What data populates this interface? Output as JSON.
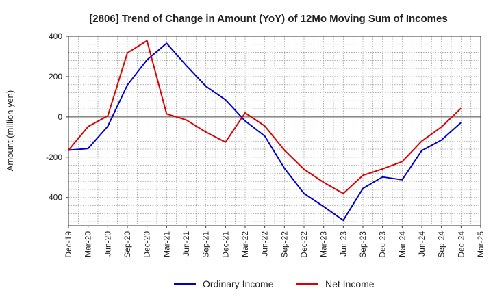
{
  "chart_data": {
    "type": "line",
    "title": "[2806]  Trend of Change in Amount (YoY) of 12Mo Moving Sum of Incomes",
    "xlabel": "",
    "ylabel": "Amount (million yen)",
    "ylim": [
      -540,
      400
    ],
    "yticks": [
      400,
      200,
      0,
      -200,
      -400
    ],
    "grid": true,
    "legend_position": "bottom-center",
    "categories": [
      "Dec-19",
      "Mar-20",
      "Jun-20",
      "Sep-20",
      "Dec-20",
      "Mar-21",
      "Jun-21",
      "Sep-21",
      "Dec-21",
      "Mar-22",
      "Jun-22",
      "Sep-22",
      "Dec-22",
      "Mar-23",
      "Jun-23",
      "Sep-23",
      "Dec-23",
      "Mar-24",
      "Jun-24",
      "Sep-24",
      "Dec-24",
      "Mar-25"
    ],
    "tick_labels": [
      "Dec-19",
      "Mar-20",
      "Jun-20",
      "Sep-20",
      "Dec-20",
      "Mar-21",
      "Jun-21",
      "Sep-21",
      "Dec-21",
      "Mar-22",
      "Jun-22",
      "Sep-22",
      "Dec-22",
      "Mar-23",
      "Jun-23",
      "Sep-23",
      "Dec-23",
      "Mar-24",
      "Jun-24",
      "Sep-24",
      "Dec-24",
      "Mar-25"
    ],
    "series": [
      {
        "name": "Ordinary Income",
        "color": "#0000cc",
        "values": [
          -165,
          -157,
          -47,
          158,
          283,
          365,
          255,
          152,
          85,
          -20,
          -95,
          -255,
          -380,
          -445,
          -513,
          -355,
          -298,
          -312,
          -167,
          -115,
          -28,
          null
        ]
      },
      {
        "name": "Net Income",
        "color": "#dd0000",
        "values": [
          -165,
          -48,
          5,
          317,
          378,
          15,
          -15,
          -75,
          -125,
          20,
          -45,
          -165,
          -260,
          -325,
          -380,
          -290,
          -258,
          -222,
          -120,
          -50,
          43,
          null
        ]
      }
    ]
  }
}
